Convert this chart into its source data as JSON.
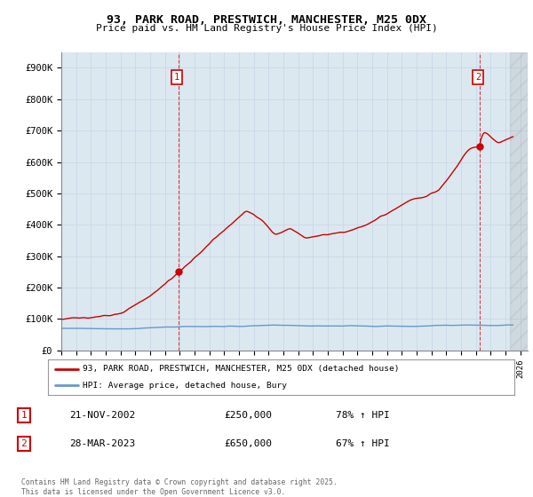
{
  "title": "93, PARK ROAD, PRESTWICH, MANCHESTER, M25 0DX",
  "subtitle": "Price paid vs. HM Land Registry's House Price Index (HPI)",
  "ylabel_ticks": [
    "£0",
    "£100K",
    "£200K",
    "£300K",
    "£400K",
    "£500K",
    "£600K",
    "£700K",
    "£800K",
    "£900K"
  ],
  "ylim": [
    0,
    950000
  ],
  "xlim_start": 1995.0,
  "xlim_end": 2026.5,
  "sale1_date": 2002.896,
  "sale1_price": 250000,
  "sale2_date": 2023.24,
  "sale2_price": 650000,
  "red_color": "#cc0000",
  "blue_color": "#6699cc",
  "grid_color": "#c8d8e8",
  "background_color": "#dce8f0",
  "plot_bg_color": "#dce8f0",
  "legend_line1": "93, PARK ROAD, PRESTWICH, MANCHESTER, M25 0DX (detached house)",
  "legend_line2": "HPI: Average price, detached house, Bury",
  "table_row1": [
    "1",
    "21-NOV-2002",
    "£250,000",
    "78% ↑ HPI"
  ],
  "table_row2": [
    "2",
    "28-MAR-2023",
    "£650,000",
    "67% ↑ HPI"
  ],
  "footnote": "Contains HM Land Registry data © Crown copyright and database right 2025.\nThis data is licensed under the Open Government Licence v3.0."
}
